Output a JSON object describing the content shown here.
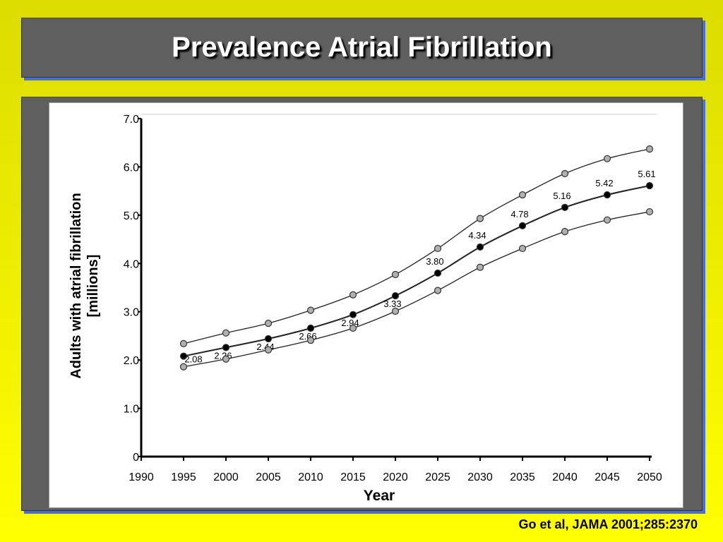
{
  "slide": {
    "title": "Prevalence Atrial Fibrillation",
    "citation": "Go et al, JAMA 2001;285:2370"
  },
  "chart_data": {
    "type": "line",
    "title": "",
    "xlabel": "Year",
    "ylabel_line1": "Adults with atrial fibrillation",
    "ylabel_line2": "[millions]",
    "xlim": [
      1990,
      2050
    ],
    "ylim": [
      0,
      7
    ],
    "x_ticks": [
      "1990",
      "1995",
      "2000",
      "2005",
      "2010",
      "2015",
      "2020",
      "2025",
      "2030",
      "2035",
      "2040",
      "2045",
      "2050"
    ],
    "y_ticks": [
      "0",
      "1.0",
      "2.0",
      "3.0",
      "4.0",
      "5.0",
      "6.0",
      "7.0"
    ],
    "grid": false,
    "x": [
      1995,
      2000,
      2005,
      2010,
      2015,
      2020,
      2025,
      2030,
      2035,
      2040,
      2045,
      2050
    ],
    "series": [
      {
        "values": [
          2.34,
          2.56,
          2.76,
          3.03,
          3.35,
          3.77,
          4.31,
          4.93,
          5.42,
          5.86,
          6.17,
          6.37
        ],
        "marker_color": "#b0b0b0"
      },
      {
        "values": [
          2.08,
          2.26,
          2.44,
          2.66,
          2.94,
          3.33,
          3.8,
          4.34,
          4.78,
          5.16,
          5.42,
          5.61
        ],
        "marker_color": "#000000",
        "data_labels": [
          "2.08",
          "2.26",
          "2.44",
          "2.66",
          "2.94",
          "3.33",
          "3.80",
          "4.34",
          "4.78",
          "5.16",
          "5.42",
          "5.61"
        ]
      },
      {
        "values": [
          1.86,
          2.02,
          2.21,
          2.41,
          2.66,
          3.01,
          3.44,
          3.92,
          4.31,
          4.66,
          4.9,
          5.07
        ],
        "marker_color": "#b0b0b0"
      }
    ]
  },
  "colors": {
    "background": "#ffff00",
    "panel": "#5f5f5f",
    "shadow": "#4a6fd8"
  }
}
